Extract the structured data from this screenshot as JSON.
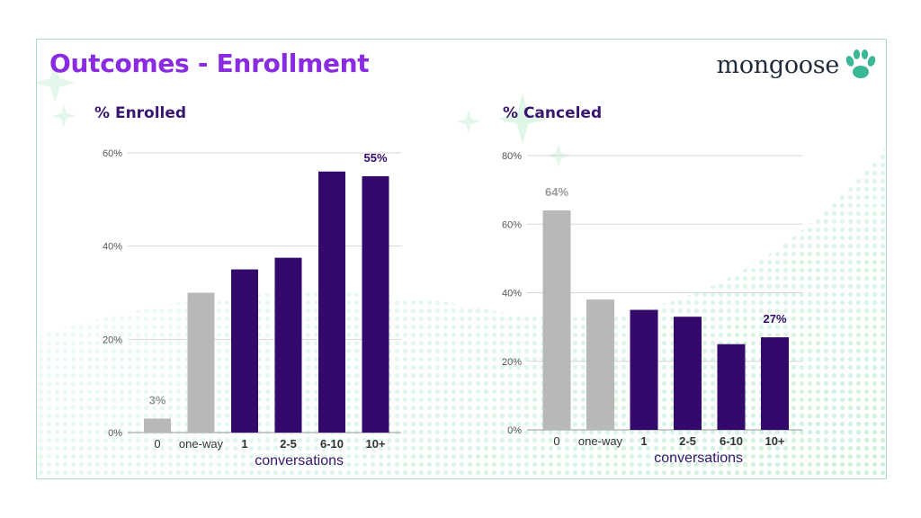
{
  "slide": {
    "title": "Outcomes - Enrollment",
    "logo_text": "mongoose",
    "logo_icon": "paw-icon"
  },
  "colors": {
    "title": "#8a2be2",
    "bar_gray": "#b8b8b8",
    "bar_purple": "#330a6b",
    "chart_title": "#3a1670",
    "logo_green": "#3ab795"
  },
  "chart_data": [
    {
      "type": "bar",
      "title": "% Enrolled",
      "xlabel": "conversations",
      "ylabel": "",
      "categories": [
        "0",
        "one-way",
        "1",
        "2-5",
        "6-10",
        "10+"
      ],
      "values": [
        3,
        30,
        35,
        37.5,
        56,
        55
      ],
      "bar_colors": [
        "gray",
        "gray",
        "purple",
        "purple",
        "purple",
        "purple"
      ],
      "bold_categories": [
        "1",
        "2-5",
        "6-10",
        "10+"
      ],
      "data_labels": [
        {
          "category": "0",
          "text": "3%",
          "color": "gray"
        },
        {
          "category": "10+",
          "text": "55%",
          "color": "purple"
        }
      ],
      "ylim": [
        0,
        60
      ],
      "yticks": [
        0,
        20,
        40,
        60
      ],
      "ytick_labels": [
        "0%",
        "20%",
        "40%",
        "60%"
      ],
      "grid": true,
      "legend": "none"
    },
    {
      "type": "bar",
      "title": "% Canceled",
      "xlabel": "conversations",
      "ylabel": "",
      "categories": [
        "0",
        "one-way",
        "1",
        "2-5",
        "6-10",
        "10+"
      ],
      "values": [
        64,
        38,
        35,
        33,
        25,
        27
      ],
      "bar_colors": [
        "gray",
        "gray",
        "purple",
        "purple",
        "purple",
        "purple"
      ],
      "bold_categories": [
        "1",
        "2-5",
        "6-10",
        "10+"
      ],
      "data_labels": [
        {
          "category": "0",
          "text": "64%",
          "color": "gray"
        },
        {
          "category": "10+",
          "text": "27%",
          "color": "purple"
        }
      ],
      "ylim": [
        0,
        80
      ],
      "yticks": [
        0,
        20,
        40,
        60,
        80
      ],
      "ytick_labels": [
        "0%",
        "20%",
        "40%",
        "60%",
        "80%"
      ],
      "grid": true,
      "legend": "none"
    }
  ]
}
